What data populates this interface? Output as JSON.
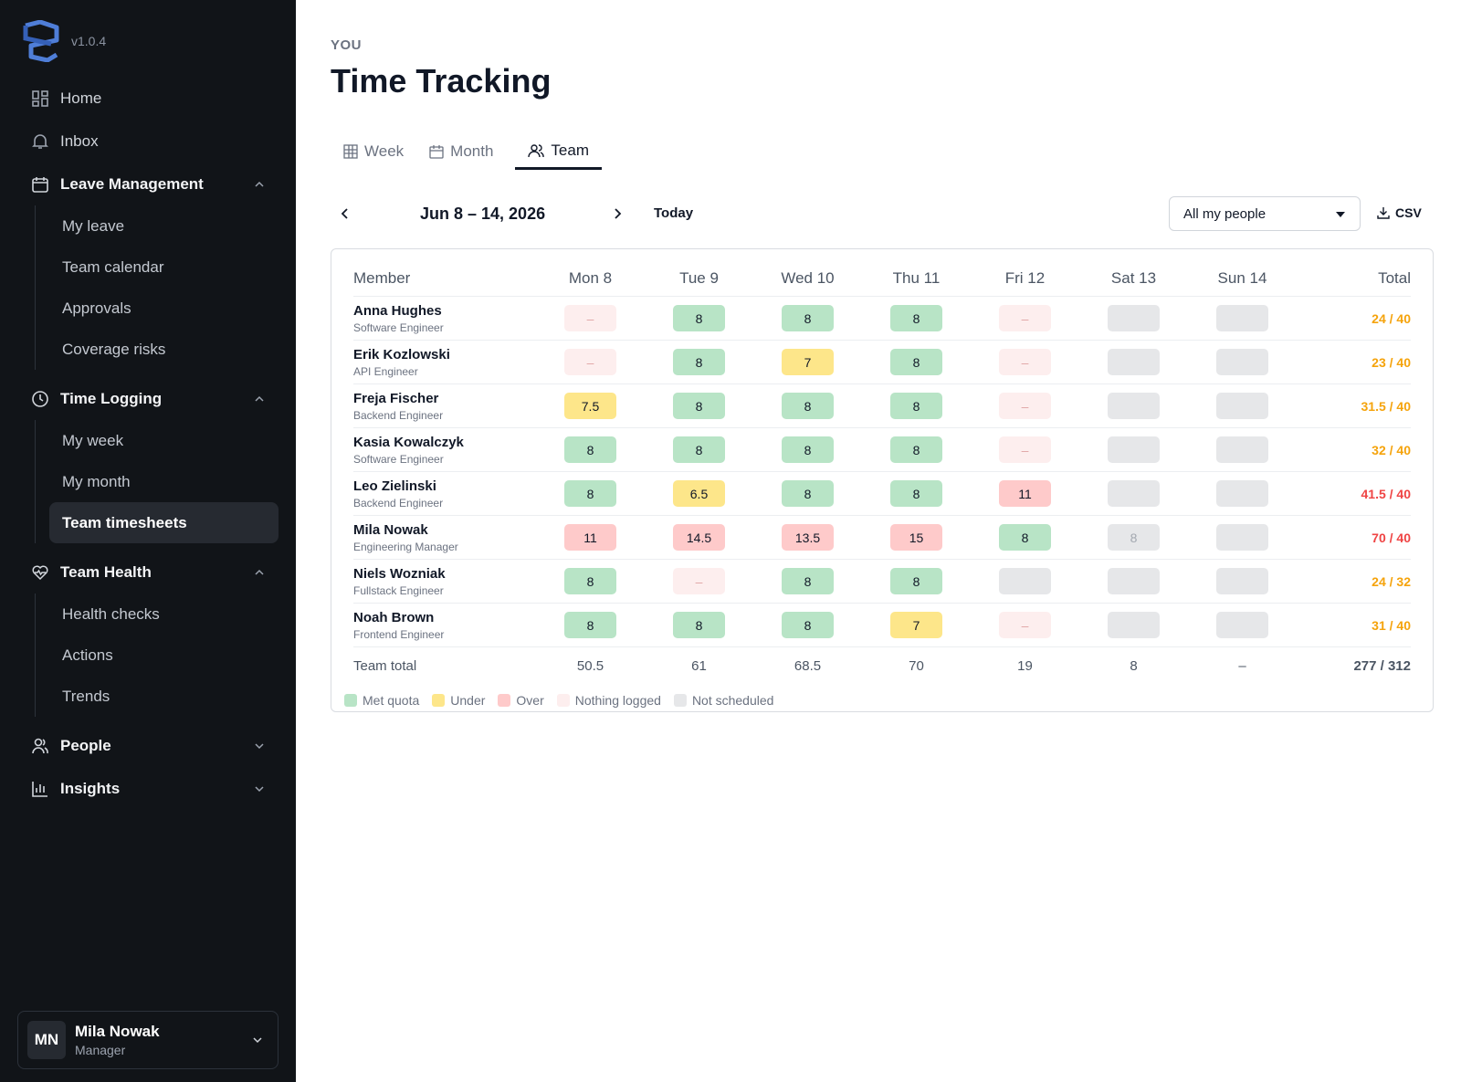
{
  "sidebar": {
    "version": "v1.0.4",
    "nav": [
      {
        "label": "Home"
      },
      {
        "label": "Inbox"
      },
      {
        "label": "Leave Management",
        "items": [
          "My leave",
          "Team calendar",
          "Approvals",
          "Coverage risks"
        ]
      },
      {
        "label": "Time Logging",
        "items": [
          "My week",
          "My month",
          "Team timesheets"
        ]
      },
      {
        "label": "Team Health",
        "items": [
          "Health checks",
          "Actions",
          "Trends"
        ]
      },
      {
        "label": "People"
      },
      {
        "label": "Insights"
      }
    ],
    "user": {
      "initials": "MN",
      "name": "Mila Nowak",
      "role": "Manager"
    }
  },
  "header": {
    "eyebrow": "YOU",
    "title": "Time Tracking"
  },
  "tabs": [
    "Week",
    "Month",
    "Team"
  ],
  "toolbar": {
    "range": "Jun 8 – 14, 2026",
    "today": "Today",
    "filter": "All my people",
    "export": "CSV"
  },
  "table": {
    "columns": [
      "Member",
      "Mon 8",
      "Tue 9",
      "Wed 10",
      "Thu 11",
      "Fri 12",
      "Sat 13",
      "Sun 14",
      "Total"
    ],
    "rows": [
      {
        "name": "Anna Hughes",
        "role": "Software Engineer",
        "days": [
          {
            "text": "–",
            "status": "none"
          },
          {
            "text": "8",
            "status": "met"
          },
          {
            "text": "8",
            "status": "met"
          },
          {
            "text": "8",
            "status": "met"
          },
          {
            "text": "–",
            "status": "none"
          },
          {
            "status": "off"
          },
          {
            "status": "off"
          }
        ],
        "total": {
          "text": "24 / 40",
          "status": "under"
        }
      },
      {
        "name": "Erik Kozlowski",
        "role": "API Engineer",
        "days": [
          {
            "text": "–",
            "status": "none"
          },
          {
            "text": "8",
            "status": "met"
          },
          {
            "text": "7",
            "status": "under"
          },
          {
            "text": "8",
            "status": "met"
          },
          {
            "text": "–",
            "status": "none"
          },
          {
            "status": "off"
          },
          {
            "status": "off"
          }
        ],
        "total": {
          "text": "23 / 40",
          "status": "under"
        }
      },
      {
        "name": "Freja Fischer",
        "role": "Backend Engineer",
        "days": [
          {
            "text": "7.5",
            "status": "under"
          },
          {
            "text": "8",
            "status": "met"
          },
          {
            "text": "8",
            "status": "met"
          },
          {
            "text": "8",
            "status": "met"
          },
          {
            "text": "–",
            "status": "none"
          },
          {
            "status": "off"
          },
          {
            "status": "off"
          }
        ],
        "total": {
          "text": "31.5 / 40",
          "status": "under"
        }
      },
      {
        "name": "Kasia Kowalczyk",
        "role": "Software Engineer",
        "days": [
          {
            "text": "8",
            "status": "met"
          },
          {
            "text": "8",
            "status": "met"
          },
          {
            "text": "8",
            "status": "met"
          },
          {
            "text": "8",
            "status": "met"
          },
          {
            "text": "–",
            "status": "none"
          },
          {
            "status": "off"
          },
          {
            "status": "off"
          }
        ],
        "total": {
          "text": "32 / 40",
          "status": "under"
        }
      },
      {
        "name": "Leo Zielinski",
        "role": "Backend Engineer",
        "days": [
          {
            "text": "8",
            "status": "met"
          },
          {
            "text": "6.5",
            "status": "under"
          },
          {
            "text": "8",
            "status": "met"
          },
          {
            "text": "8",
            "status": "met"
          },
          {
            "text": "11",
            "status": "over"
          },
          {
            "status": "off"
          },
          {
            "status": "off"
          }
        ],
        "total": {
          "text": "41.5 / 40",
          "status": "over"
        }
      },
      {
        "name": "Mila Nowak",
        "role": "Engineering Manager",
        "days": [
          {
            "text": "11",
            "status": "over"
          },
          {
            "text": "14.5",
            "status": "over"
          },
          {
            "text": "13.5",
            "status": "over"
          },
          {
            "text": "15",
            "status": "over"
          },
          {
            "text": "8",
            "status": "met"
          },
          {
            "text": "8",
            "status": "off"
          },
          {
            "status": "off"
          }
        ],
        "total": {
          "text": "70 / 40",
          "status": "over"
        }
      },
      {
        "name": "Niels Wozniak",
        "role": "Fullstack Engineer",
        "days": [
          {
            "text": "8",
            "status": "met"
          },
          {
            "text": "–",
            "status": "none"
          },
          {
            "text": "8",
            "status": "met"
          },
          {
            "text": "8",
            "status": "met"
          },
          {
            "status": "off"
          },
          {
            "status": "off"
          },
          {
            "status": "off"
          }
        ],
        "total": {
          "text": "24 / 32",
          "status": "under"
        }
      },
      {
        "name": "Noah Brown",
        "role": "Frontend Engineer",
        "days": [
          {
            "text": "8",
            "status": "met"
          },
          {
            "text": "8",
            "status": "met"
          },
          {
            "text": "8",
            "status": "met"
          },
          {
            "text": "7",
            "status": "under"
          },
          {
            "text": "–",
            "status": "none"
          },
          {
            "status": "off"
          },
          {
            "status": "off"
          }
        ],
        "total": {
          "text": "31 / 40",
          "status": "under"
        }
      }
    ],
    "footer": {
      "label": "Team total",
      "days": [
        "50.5",
        "61",
        "68.5",
        "70",
        "19",
        "8",
        "–"
      ],
      "total": "277 / 312"
    },
    "legend": [
      {
        "label": "Met quota",
        "status": "met"
      },
      {
        "label": "Under",
        "status": "under"
      },
      {
        "label": "Over",
        "status": "over"
      },
      {
        "label": "Nothing logged",
        "status": "none"
      },
      {
        "label": "Not scheduled",
        "status": "off"
      }
    ]
  }
}
